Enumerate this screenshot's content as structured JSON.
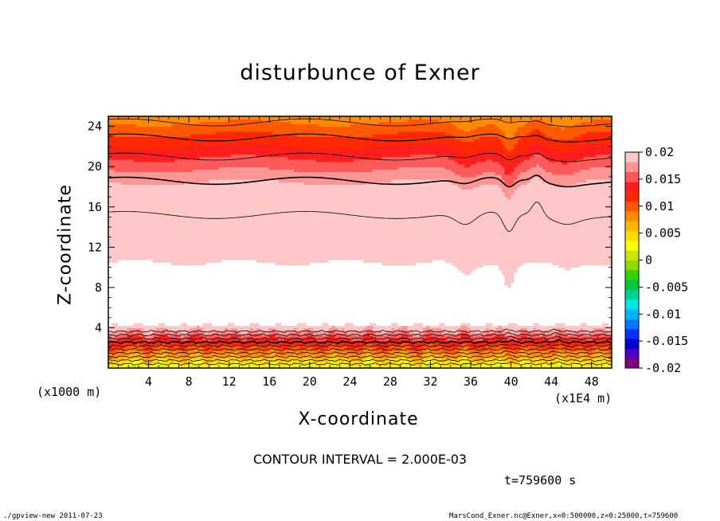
{
  "chart_data": {
    "type": "heatmap",
    "title": "disturbunce of Exner",
    "xlabel": "X-coordinate",
    "ylabel": "Z-coordinate",
    "x_unit_left": "(x1000 m)",
    "x_unit_right": "(x1E4 m)",
    "xlim": [
      0,
      50
    ],
    "ylim": [
      0,
      25
    ],
    "xticks": [
      "4",
      "8",
      "12",
      "16",
      "20",
      "24",
      "28",
      "32",
      "36",
      "40",
      "44",
      "48"
    ],
    "yticks": [
      "4",
      "8",
      "12",
      "16",
      "20",
      "24"
    ],
    "colorbar": {
      "ticks": [
        "0.02",
        "0.015",
        "0.01",
        "0.005",
        "0",
        "-0.005",
        "-0.01",
        "-0.015",
        "-0.02"
      ],
      "range": [
        -0.02,
        0.02
      ],
      "colors": [
        "#800080",
        "#4b00c8",
        "#0000d2",
        "#0032ff",
        "#0078ff",
        "#00b4ff",
        "#00e6e6",
        "#00d28c",
        "#00c83c",
        "#32d200",
        "#8cdc00",
        "#c8e600",
        "#ffff00",
        "#ffdc00",
        "#ffb400",
        "#ff8c00",
        "#ff5a00",
        "#ff2800",
        "#ff1e1e",
        "#ff5a5a",
        "#ff9696",
        "#ffc8c8"
      ]
    },
    "contour_interval": "CONTOUR INTERVAL = 2.000E-03",
    "timestamp": "t=759600 s"
  },
  "footer": {
    "left": "./gpview-new   2011-07-23",
    "right": "MarsCond_Exner.nc@Exner,x=0:500000,z=0:25000,t=759600"
  }
}
